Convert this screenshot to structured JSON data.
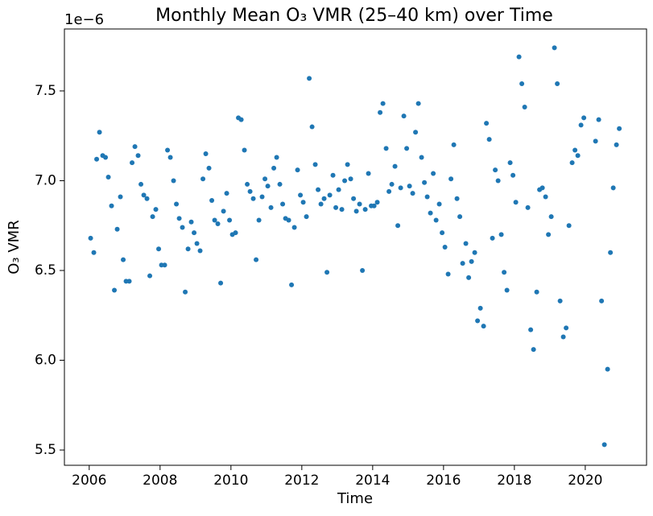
{
  "chart_data": {
    "type": "scatter",
    "title": "Monthly Mean O₃ VMR (25–40 km) over Time",
    "x_label": "Time",
    "y_label": "O₃ VMR",
    "y_multiplier": "1e−6",
    "color": "#1f77b4",
    "xlim": [
      2005.3,
      2021.73
    ],
    "xticks": [
      2006,
      2008,
      2010,
      2012,
      2014,
      2016,
      2018,
      2020
    ],
    "ylim": [
      5.415,
      7.845
    ],
    "yticks": [
      5.5,
      {
        "value": 6,
        "label": "6.0"
      },
      6.5,
      {
        "value": 7,
        "label": "7.0"
      },
      7.5
    ],
    "x": [
      2006.04,
      2006.13,
      2006.21,
      2006.29,
      2006.38,
      2006.46,
      2006.54,
      2006.63,
      2006.71,
      2006.79,
      2006.88,
      2006.96,
      2007.04,
      2007.13,
      2007.21,
      2007.29,
      2007.38,
      2007.46,
      2007.54,
      2007.63,
      2007.71,
      2007.79,
      2007.88,
      2007.96,
      2008.04,
      2008.13,
      2008.21,
      2008.29,
      2008.38,
      2008.46,
      2008.54,
      2008.63,
      2008.71,
      2008.79,
      2008.88,
      2008.96,
      2009.04,
      2009.13,
      2009.21,
      2009.29,
      2009.38,
      2009.46,
      2009.54,
      2009.63,
      2009.71,
      2009.79,
      2009.88,
      2009.96,
      2010.04,
      2010.13,
      2010.21,
      2010.29,
      2010.38,
      2010.46,
      2010.54,
      2010.63,
      2010.71,
      2010.79,
      2010.88,
      2010.96,
      2011.04,
      2011.13,
      2011.21,
      2011.29,
      2011.38,
      2011.46,
      2011.54,
      2011.63,
      2011.71,
      2011.79,
      2011.88,
      2011.96,
      2012.04,
      2012.13,
      2012.21,
      2012.29,
      2012.38,
      2012.46,
      2012.54,
      2012.63,
      2012.71,
      2012.79,
      2012.88,
      2012.96,
      2013.04,
      2013.13,
      2013.21,
      2013.29,
      2013.38,
      2013.46,
      2013.54,
      2013.63,
      2013.71,
      2013.79,
      2013.88,
      2013.96,
      2014.04,
      2014.13,
      2014.21,
      2014.29,
      2014.38,
      2014.46,
      2014.54,
      2014.63,
      2014.71,
      2014.79,
      2014.88,
      2014.96,
      2015.04,
      2015.13,
      2015.21,
      2015.29,
      2015.38,
      2015.46,
      2015.54,
      2015.63,
      2015.71,
      2015.79,
      2015.88,
      2015.96,
      2016.04,
      2016.13,
      2016.21,
      2016.29,
      2016.38,
      2016.46,
      2016.54,
      2016.63,
      2016.71,
      2016.79,
      2016.88,
      2016.96,
      2017.04,
      2017.13,
      2017.21,
      2017.29,
      2017.38,
      2017.46,
      2017.54,
      2017.63,
      2017.71,
      2017.79,
      2017.88,
      2017.96,
      2018.04,
      2018.13,
      2018.21,
      2018.29,
      2018.38,
      2018.46,
      2018.54,
      2018.63,
      2018.71,
      2018.79,
      2018.88,
      2018.96,
      2019.04,
      2019.13,
      2019.21,
      2019.29,
      2019.38,
      2019.46,
      2019.54,
      2019.63,
      2019.71,
      2019.79,
      2019.88,
      2019.96,
      2020.29,
      2020.38,
      2020.46,
      2020.54,
      2020.63,
      2020.71,
      2020.79,
      2020.88,
      2020.96
    ],
    "values": [
      6.68,
      6.6,
      7.12,
      7.27,
      7.14,
      7.13,
      7.02,
      6.86,
      6.39,
      6.73,
      6.91,
      6.56,
      6.44,
      6.44,
      7.1,
      7.19,
      7.14,
      6.98,
      6.92,
      6.9,
      6.47,
      6.8,
      6.84,
      6.62,
      6.53,
      6.53,
      7.17,
      7.13,
      7.0,
      6.87,
      6.79,
      6.74,
      6.38,
      6.62,
      6.77,
      6.71,
      6.65,
      6.61,
      7.01,
      7.15,
      7.07,
      6.89,
      6.78,
      6.76,
      6.43,
      6.83,
      6.93,
      6.78,
      6.7,
      6.71,
      7.35,
      7.34,
      7.17,
      6.98,
      6.94,
      6.9,
      6.56,
      6.78,
      6.91,
      7.01,
      6.97,
      6.85,
      7.07,
      7.13,
      6.98,
      6.87,
      6.79,
      6.78,
      6.42,
      6.74,
      7.06,
      6.92,
      6.88,
      6.8,
      7.57,
      7.3,
      7.09,
      6.95,
      6.87,
      6.9,
      6.49,
      6.92,
      7.03,
      6.85,
      6.95,
      6.84,
      7.0,
      7.09,
      7.01,
      6.9,
      6.83,
      6.87,
      6.5,
      6.84,
      7.04,
      6.86,
      6.86,
      6.88,
      7.38,
      7.43,
      7.18,
      6.94,
      6.98,
      7.08,
      6.75,
      6.96,
      7.36,
      7.18,
      6.97,
      6.93,
      7.27,
      7.43,
      7.13,
      6.99,
      6.91,
      6.82,
      7.04,
      6.78,
      6.87,
      6.71,
      6.63,
      6.48,
      7.01,
      7.2,
      6.9,
      6.8,
      6.54,
      6.65,
      6.46,
      6.55,
      6.6,
      6.22,
      6.29,
      6.19,
      7.32,
      7.23,
      6.68,
      7.06,
      7.0,
      6.7,
      6.49,
      6.39,
      7.1,
      7.03,
      6.88,
      7.69,
      7.54,
      7.41,
      6.85,
      6.17,
      6.06,
      6.38,
      6.95,
      6.96,
      6.91,
      6.7,
      6.8,
      7.74,
      7.54,
      6.33,
      6.13,
      6.18,
      6.75,
      7.1,
      7.17,
      7.14,
      7.31,
      7.35,
      7.22,
      7.34,
      6.33,
      5.53,
      5.95,
      6.6,
      6.96,
      7.2,
      7.29
    ]
  }
}
